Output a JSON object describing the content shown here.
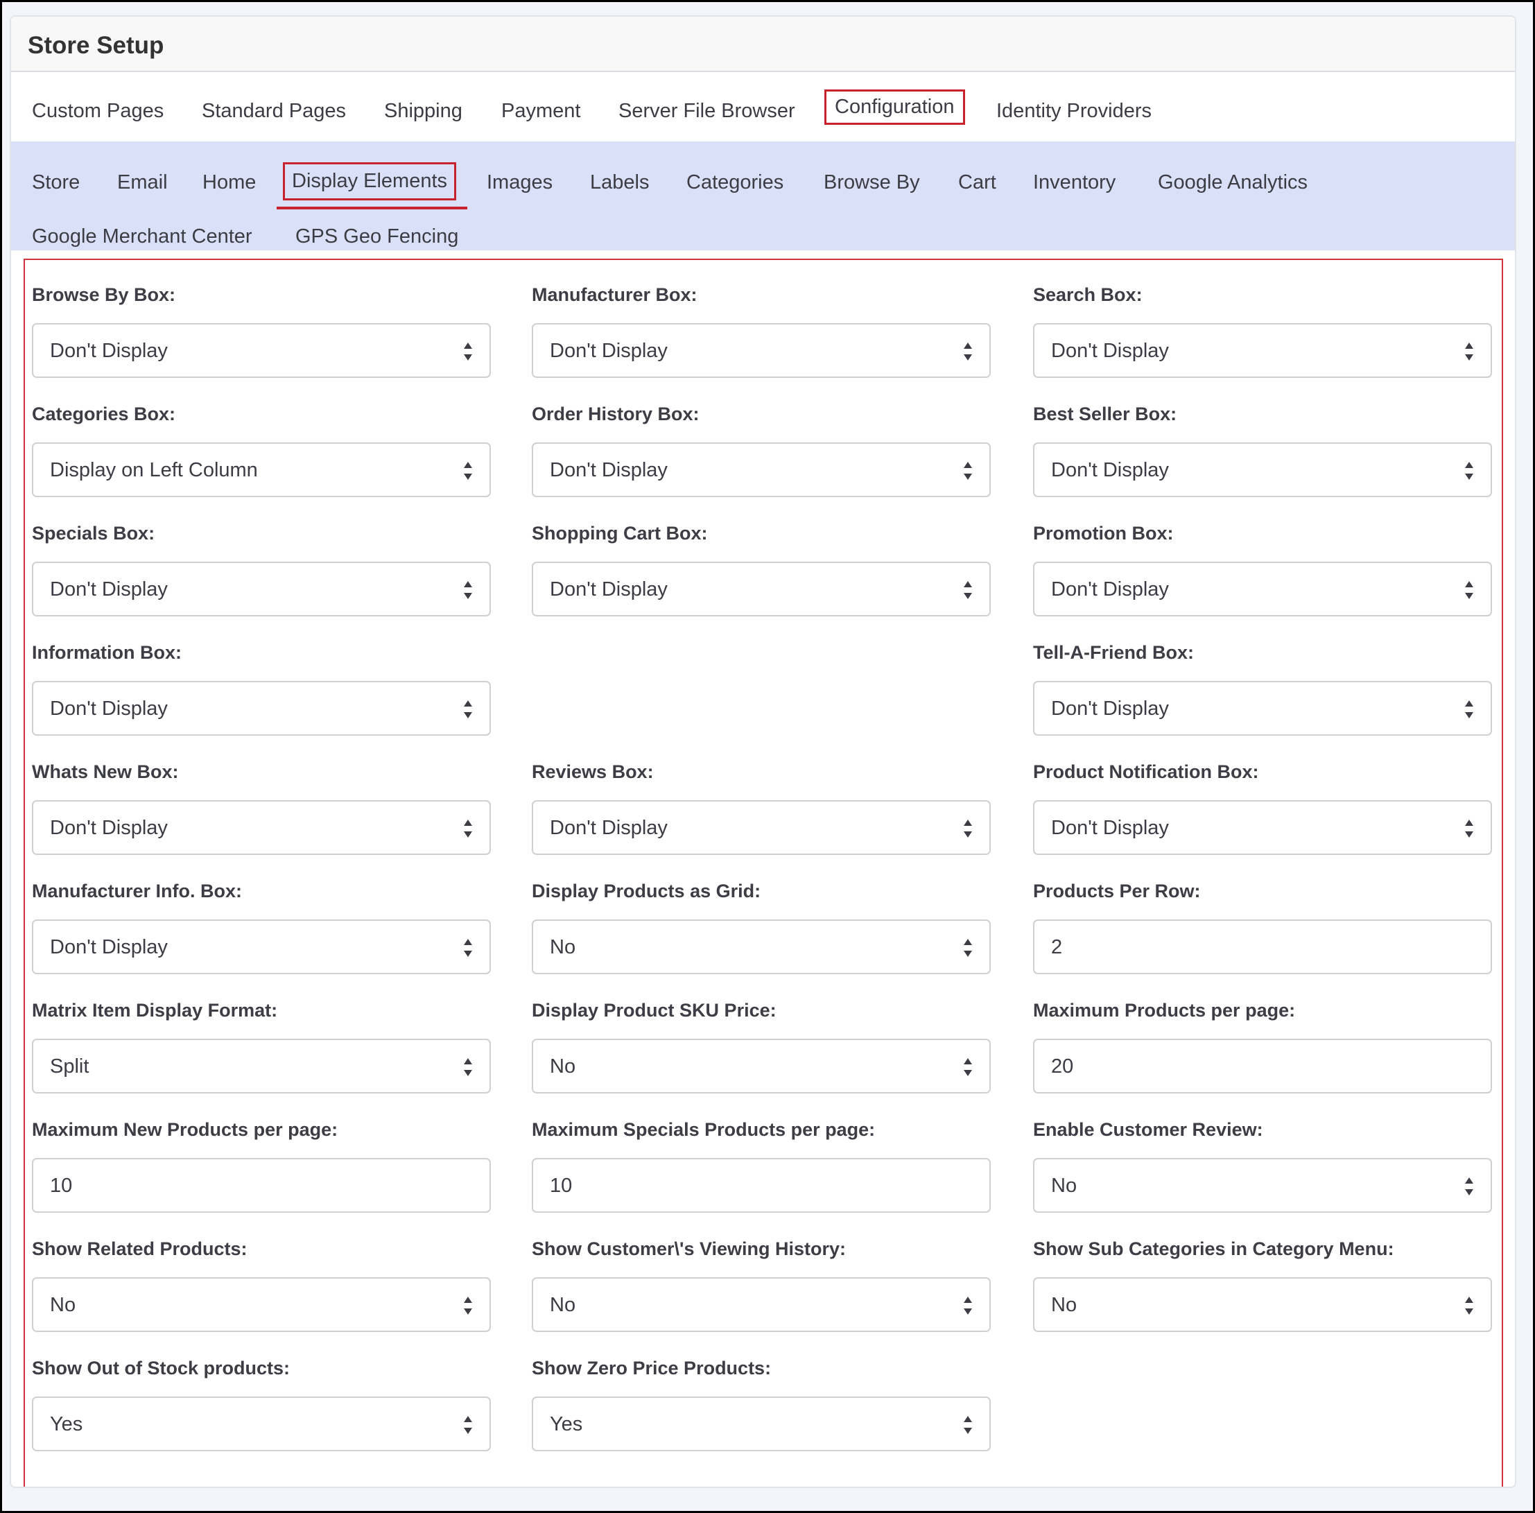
{
  "header": {
    "title": "Store Setup"
  },
  "tabs": [
    {
      "label": "Custom Pages"
    },
    {
      "label": "Standard Pages"
    },
    {
      "label": "Shipping"
    },
    {
      "label": "Payment"
    },
    {
      "label": "Server File Browser"
    },
    {
      "label": "Configuration",
      "active": true
    },
    {
      "label": "Identity Providers"
    }
  ],
  "subtabs": [
    {
      "label": "Store"
    },
    {
      "label": "Email"
    },
    {
      "label": "Home"
    },
    {
      "label": "Display Elements",
      "active": true
    },
    {
      "label": "Images"
    },
    {
      "label": "Labels"
    },
    {
      "label": "Categories"
    },
    {
      "label": "Browse By"
    },
    {
      "label": "Cart"
    },
    {
      "label": "Inventory"
    },
    {
      "label": "Google Analytics"
    },
    {
      "label": "Google Merchant Center"
    },
    {
      "label": "GPS Geo Fencing"
    }
  ],
  "colors": {
    "accent": "#c8232c",
    "subnav_bg": "#d9e0f8"
  },
  "fields": [
    {
      "label": "Browse By Box:",
      "value": "Don't Display",
      "type": "select"
    },
    {
      "label": "Manufacturer Box:",
      "value": "Don't Display",
      "type": "select"
    },
    {
      "label": "Search Box:",
      "value": "Don't Display",
      "type": "select"
    },
    {
      "label": "Categories Box:",
      "value": "Display on Left Column",
      "type": "select"
    },
    {
      "label": "Order History Box:",
      "value": "Don't Display",
      "type": "select"
    },
    {
      "label": "Best Seller Box:",
      "value": "Don't Display",
      "type": "select"
    },
    {
      "label": "Specials Box:",
      "value": "Don't Display",
      "type": "select"
    },
    {
      "label": "Shopping Cart Box:",
      "value": "Don't Display",
      "type": "select"
    },
    {
      "label": "Promotion Box:",
      "value": "Don't Display",
      "type": "select"
    },
    {
      "label": "Information Box:",
      "value": "Don't Display",
      "type": "select"
    },
    null,
    {
      "label": "Tell-A-Friend Box:",
      "value": "Don't Display",
      "type": "select"
    },
    {
      "label": "Whats New Box:",
      "value": "Don't Display",
      "type": "select"
    },
    {
      "label": "Reviews Box:",
      "value": "Don't Display",
      "type": "select"
    },
    {
      "label": "Product Notification Box:",
      "value": "Don't Display",
      "type": "select"
    },
    {
      "label": "Manufacturer Info. Box:",
      "value": "Don't Display",
      "type": "select"
    },
    {
      "label": "Display Products as Grid:",
      "value": "No",
      "type": "select"
    },
    {
      "label": "Products Per Row:",
      "value": "2",
      "type": "input"
    },
    {
      "label": "Matrix Item Display Format:",
      "value": "Split",
      "type": "select"
    },
    {
      "label": "Display Product SKU Price:",
      "value": "No",
      "type": "select"
    },
    {
      "label": "Maximum Products per page:",
      "value": "20",
      "type": "input"
    },
    {
      "label": "Maximum New Products per page:",
      "value": "10",
      "type": "input"
    },
    {
      "label": "Maximum Specials Products per page:",
      "value": "10",
      "type": "input"
    },
    {
      "label": "Enable Customer Review:",
      "value": "No",
      "type": "select"
    },
    {
      "label": "Show Related Products:",
      "value": "No",
      "type": "select"
    },
    {
      "label": "Show Customer\\'s Viewing History:",
      "value": "No",
      "type": "select"
    },
    {
      "label": "Show Sub Categories in Category Menu:",
      "value": "No",
      "type": "select"
    },
    {
      "label": "Show Out of Stock products:",
      "value": "Yes",
      "type": "select"
    },
    {
      "label": "Show Zero Price Products:",
      "value": "Yes",
      "type": "select"
    },
    null
  ]
}
